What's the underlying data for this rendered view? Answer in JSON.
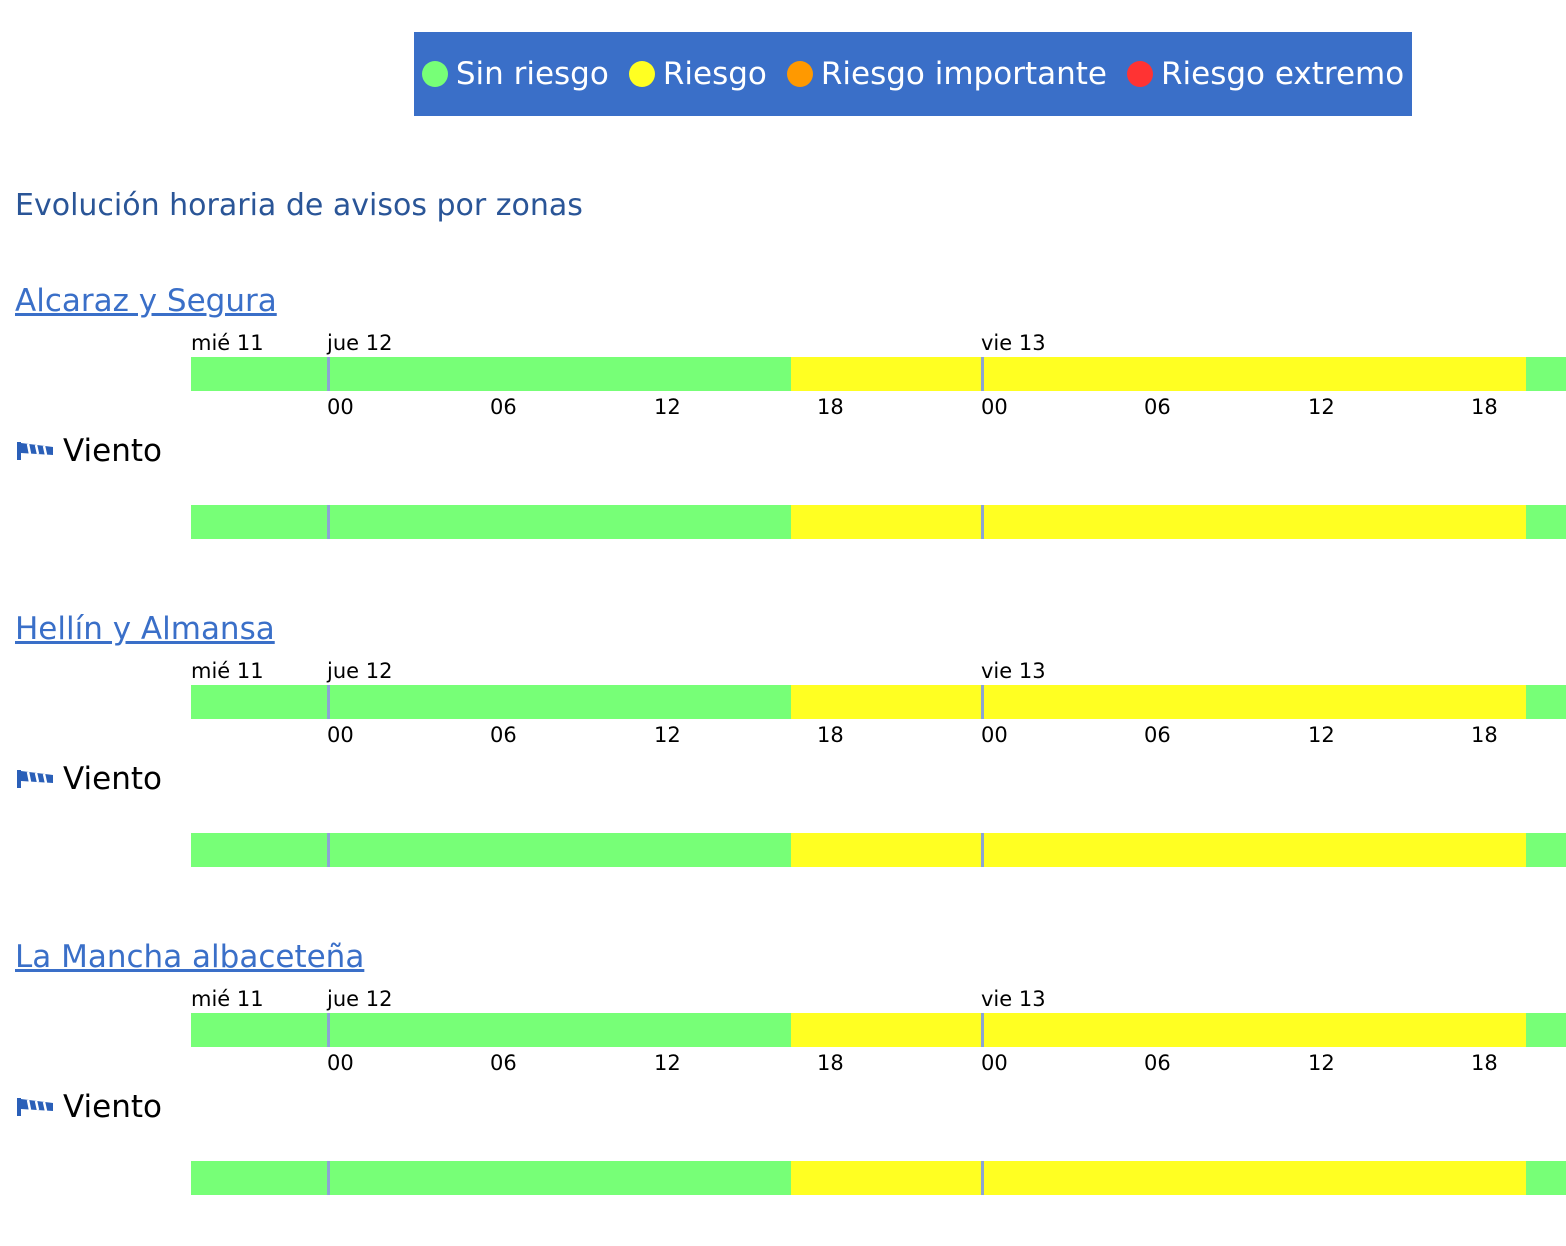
{
  "legend": [
    {
      "label": "Sin riesgo",
      "color": "#77ff77"
    },
    {
      "label": "Riesgo",
      "color": "#ffff22"
    },
    {
      "label": "Riesgo importante",
      "color": "#ff9900"
    },
    {
      "label": "Riesgo extremo",
      "color": "#ff3333"
    }
  ],
  "main_title": "Evolución horaria de avisos por zonas",
  "timeline": {
    "days": [
      "mié 11",
      "jue 12",
      "vie 13"
    ],
    "hours": [
      "00",
      "06",
      "12",
      "18",
      "00",
      "06",
      "12",
      "18"
    ]
  },
  "zones": [
    {
      "name": "Alcaraz y Segura",
      "phenomenon": "Viento",
      "phenomenon_icon": "wind-icon"
    },
    {
      "name": "Hellín y Almansa",
      "phenomenon": "Viento",
      "phenomenon_icon": "wind-icon"
    },
    {
      "name": "La Mancha albaceteña",
      "phenomenon": "Viento",
      "phenomenon_icon": "wind-icon"
    }
  ]
}
